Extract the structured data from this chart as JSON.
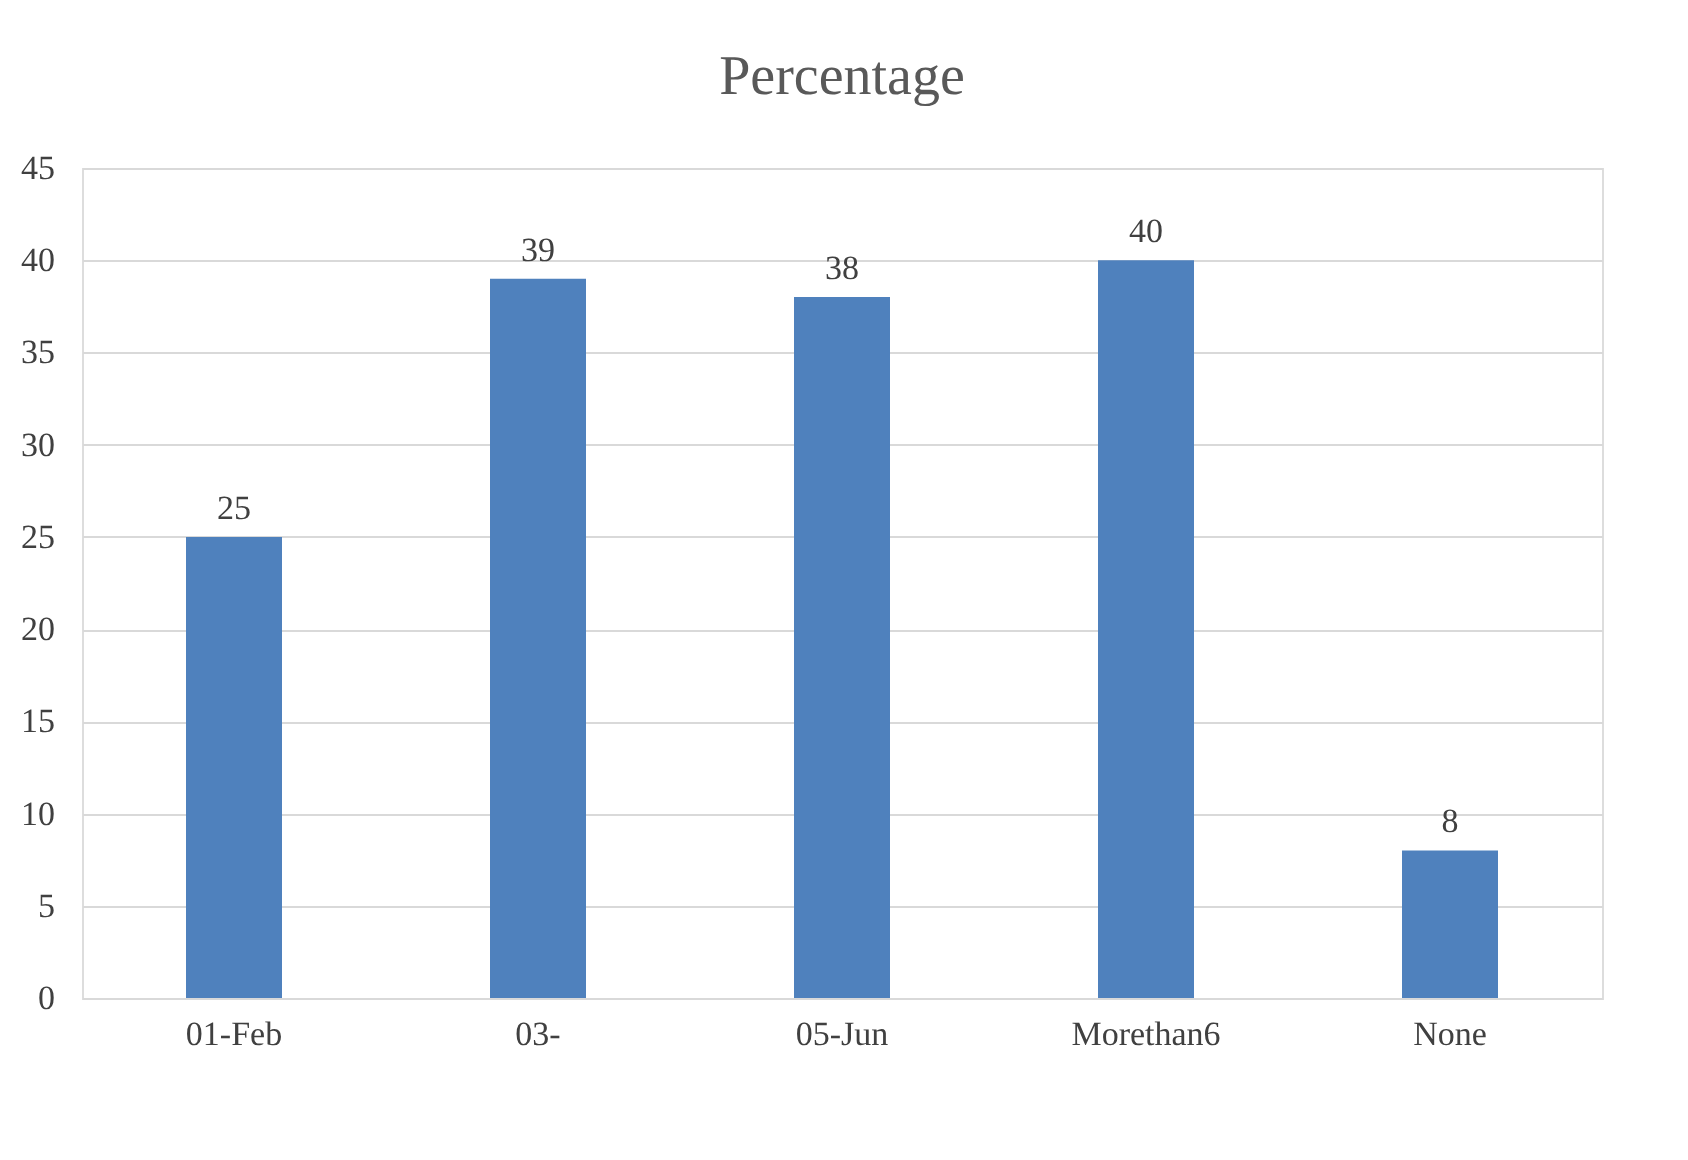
{
  "chart_data": {
    "type": "bar",
    "title": "Percentage",
    "categories": [
      "01-Feb",
      "03-",
      "05-Jun",
      "Morethan6",
      "None"
    ],
    "values": [
      25,
      39,
      38,
      40,
      8
    ],
    "color": "#4f81bd",
    "ylim": [
      0,
      45
    ],
    "yticks": [
      0,
      5,
      10,
      15,
      20,
      25,
      30,
      35,
      40,
      45
    ],
    "grid": "y",
    "data_labels": true
  }
}
